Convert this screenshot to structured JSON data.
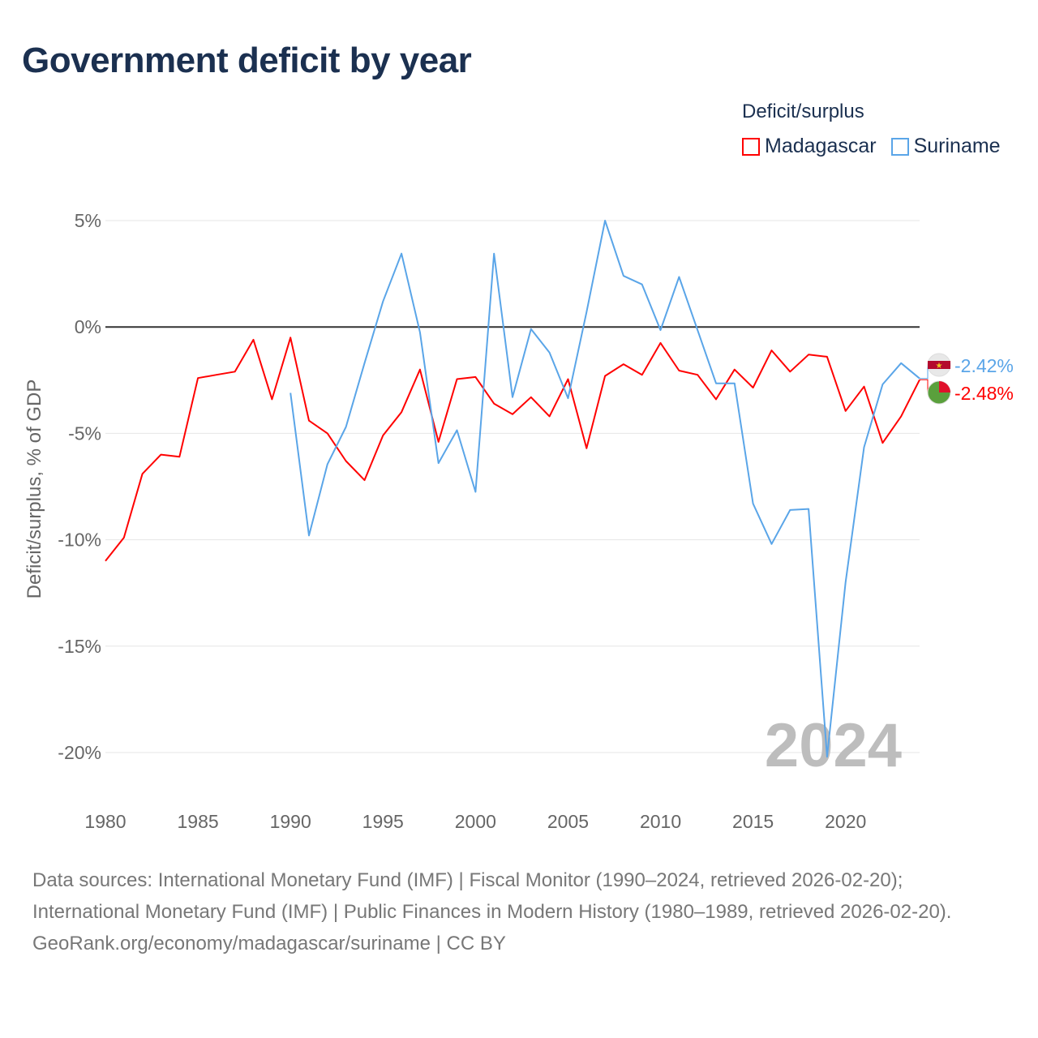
{
  "title": "Government deficit by year",
  "legend": {
    "title": "Deficit/surplus",
    "items": [
      {
        "name": "Madagascar",
        "color": "#ff0000"
      },
      {
        "name": "Suriname",
        "color": "#5aa5e8"
      }
    ]
  },
  "watermark_year": "2024",
  "footer": {
    "sources": "Data sources: International Monetary Fund (IMF) | Fiscal Monitor (1990–2024, retrieved 2026-02-20); International Monetary Fund (IMF) | Public Finances in Modern History (1980–1989, retrieved 2026-02-20).",
    "credit": "GeoRank.org/economy/madagascar/suriname | CC BY"
  },
  "chart_data": {
    "type": "line",
    "title": "Government deficit by year",
    "xlabel": "",
    "ylabel": "Deficit/surplus, % of GDP",
    "xlim": [
      1980,
      2024
    ],
    "ylim": [
      -20,
      5
    ],
    "x_ticks": [
      1980,
      1985,
      1990,
      1995,
      2000,
      2005,
      2010,
      2015,
      2020
    ],
    "y_ticks": [
      5,
      0,
      -5,
      -10,
      -15,
      -20
    ],
    "y_tick_labels": [
      "5%",
      "0%",
      "-5%",
      "-10%",
      "-15%",
      "-20%"
    ],
    "grid": true,
    "legend_position": "top-right",
    "series": [
      {
        "name": "Madagascar",
        "color": "#ff0000",
        "end_label": "-2.48%",
        "x": [
          1980,
          1981,
          1982,
          1983,
          1984,
          1985,
          1986,
          1987,
          1988,
          1989,
          1990,
          1991,
          1992,
          1993,
          1994,
          1995,
          1996,
          1997,
          1998,
          1999,
          2000,
          2001,
          2002,
          2003,
          2004,
          2005,
          2006,
          2007,
          2008,
          2009,
          2010,
          2011,
          2012,
          2013,
          2014,
          2015,
          2016,
          2017,
          2018,
          2019,
          2020,
          2021,
          2022,
          2023,
          2024
        ],
        "values": [
          -11.0,
          -9.9,
          -6.9,
          -6.0,
          -6.1,
          -2.4,
          -2.25,
          -2.1,
          -0.6,
          -3.4,
          -0.5,
          -4.4,
          -5.0,
          -6.3,
          -7.2,
          -5.1,
          -4.0,
          -2.0,
          -5.4,
          -2.45,
          -2.35,
          -3.6,
          -4.1,
          -3.3,
          -4.2,
          -2.45,
          -5.7,
          -2.3,
          -1.75,
          -2.25,
          -0.75,
          -2.05,
          -2.25,
          -3.4,
          -2.0,
          -2.85,
          -1.1,
          -2.1,
          -1.3,
          -1.4,
          -3.95,
          -2.8,
          -5.45,
          -4.2,
          -2.48
        ]
      },
      {
        "name": "Suriname",
        "color": "#5aa5e8",
        "end_label": "-2.42%",
        "x": [
          1990,
          1991,
          1992,
          1993,
          1994,
          1995,
          1996,
          1997,
          1998,
          1999,
          2000,
          2001,
          2002,
          2003,
          2004,
          2005,
          2006,
          2007,
          2008,
          2009,
          2010,
          2011,
          2012,
          2013,
          2014,
          2015,
          2016,
          2017,
          2018,
          2019,
          2020,
          2021,
          2022,
          2023,
          2024
        ],
        "values": [
          -3.1,
          -9.8,
          -6.45,
          -4.7,
          -1.7,
          1.2,
          3.45,
          -0.25,
          -6.4,
          -4.85,
          -7.75,
          3.45,
          -3.3,
          -0.1,
          -1.2,
          -3.35,
          0.7,
          5.0,
          2.4,
          2.0,
          -0.15,
          2.35,
          -0.15,
          -2.65,
          -2.65,
          -8.3,
          -10.2,
          -8.6,
          -8.55,
          -20.2,
          -12.0,
          -5.65,
          -2.7,
          -1.7,
          -2.42
        ]
      }
    ]
  }
}
